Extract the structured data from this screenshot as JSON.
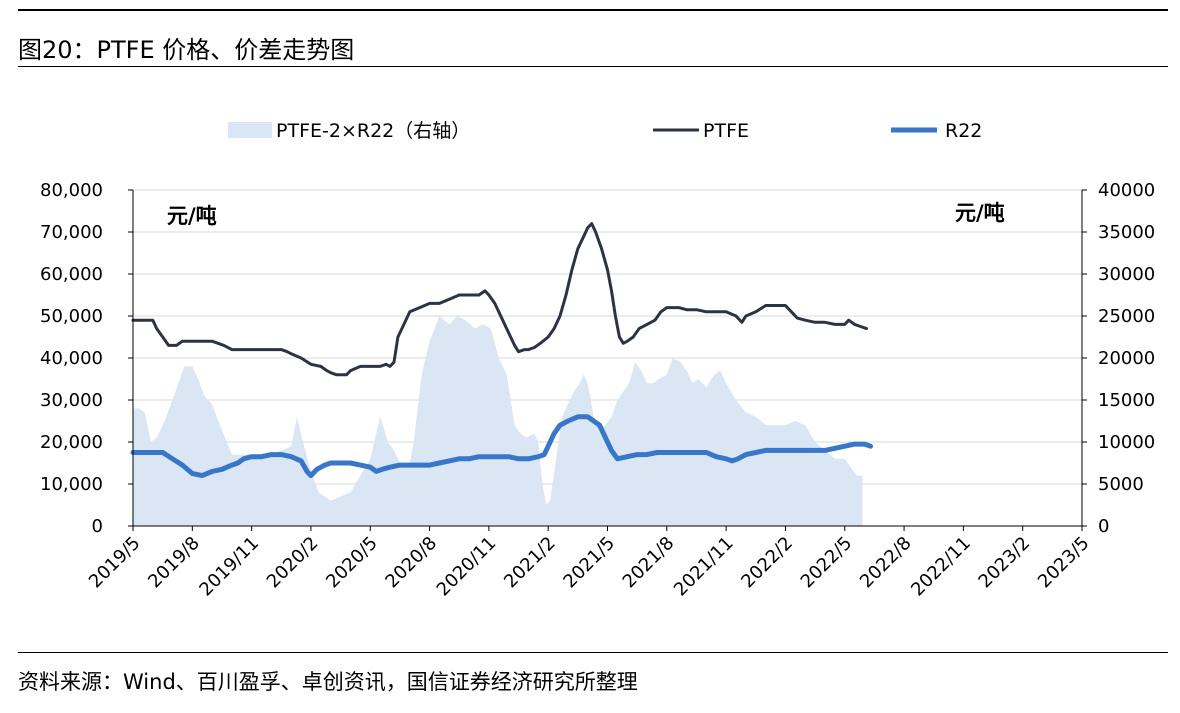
{
  "figure": {
    "title": "图20：PTFE 价格、价差走势图",
    "source": "资料来源：Wind、百川盈孚、卓创资讯，国信证券经济研究所整理"
  },
  "chart_data": {
    "type": "line",
    "left_unit": "元/吨",
    "right_unit": "元/吨",
    "x_tick_labels": [
      "2019/5",
      "2019/8",
      "2019/11",
      "2020/2",
      "2020/5",
      "2020/8",
      "2020/11",
      "2021/2",
      "2021/5",
      "2021/8",
      "2021/11",
      "2022/2",
      "2022/5",
      "2022/8",
      "2022/11",
      "2023/2",
      "2023/5"
    ],
    "left_axis": {
      "ylim": [
        0,
        80000
      ],
      "tick_labels": [
        "0",
        "10,000",
        "20,000",
        "30,000",
        "40,000",
        "50,000",
        "60,000",
        "70,000",
        "80,000"
      ]
    },
    "right_axis": {
      "ylim": [
        0,
        40000
      ],
      "tick_labels": [
        "0",
        "5000",
        "10000",
        "15000",
        "20000",
        "25000",
        "30000",
        "35000",
        "40000"
      ]
    },
    "grid": "horizontal",
    "legend_position": "top",
    "series": [
      {
        "name": "PTFE-2×R22（右轴）",
        "type": "area",
        "axis": "right",
        "color": "#dae6f4",
        "points": [
          [
            0,
            14000
          ],
          [
            0.3,
            14000
          ],
          [
            0.6,
            13500
          ],
          [
            0.9,
            10000
          ],
          [
            1.2,
            10500
          ],
          [
            1.6,
            12500
          ],
          [
            2.0,
            15000
          ],
          [
            2.3,
            17000
          ],
          [
            2.6,
            19000
          ],
          [
            3.0,
            19000
          ],
          [
            3.3,
            17500
          ],
          [
            3.6,
            15500
          ],
          [
            4.0,
            14500
          ],
          [
            4.4,
            12000
          ],
          [
            5.0,
            8500
          ],
          [
            6.0,
            8500
          ],
          [
            7.0,
            8500
          ],
          [
            7.5,
            9000
          ],
          [
            8.0,
            9500
          ],
          [
            8.3,
            13000
          ],
          [
            8.6,
            10000
          ],
          [
            9.0,
            6500
          ],
          [
            9.4,
            4000
          ],
          [
            9.7,
            3500
          ],
          [
            10.0,
            3000
          ],
          [
            10.5,
            3500
          ],
          [
            11.0,
            4000
          ],
          [
            11.5,
            6000
          ],
          [
            12.0,
            8000
          ],
          [
            12.5,
            13000
          ],
          [
            12.9,
            10000
          ],
          [
            13.2,
            9000
          ],
          [
            13.6,
            7000
          ],
          [
            14.0,
            7500
          ],
          [
            14.2,
            10000
          ],
          [
            14.6,
            18000
          ],
          [
            15.0,
            22000
          ],
          [
            15.5,
            25000
          ],
          [
            16.0,
            24000
          ],
          [
            16.4,
            25000
          ],
          [
            16.8,
            24500
          ],
          [
            17.3,
            23500
          ],
          [
            17.7,
            24000
          ],
          [
            18.1,
            23500
          ],
          [
            18.5,
            20000
          ],
          [
            18.9,
            18000
          ],
          [
            19.3,
            12000
          ],
          [
            19.6,
            11000
          ],
          [
            19.9,
            10500
          ],
          [
            20.3,
            11000
          ],
          [
            20.5,
            10000
          ],
          [
            20.7,
            5000
          ],
          [
            20.9,
            2500
          ],
          [
            21.1,
            3000
          ],
          [
            21.4,
            8000
          ],
          [
            21.7,
            13000
          ],
          [
            22.0,
            14500
          ],
          [
            22.3,
            16000
          ],
          [
            22.6,
            17000
          ],
          [
            22.8,
            18000
          ],
          [
            23.0,
            17000
          ],
          [
            23.3,
            13000
          ],
          [
            23.6,
            11500
          ],
          [
            23.9,
            12000
          ],
          [
            24.2,
            13000
          ],
          [
            24.5,
            15000
          ],
          [
            24.8,
            16000
          ],
          [
            25.1,
            17000
          ],
          [
            25.4,
            19500
          ],
          [
            25.7,
            18500
          ],
          [
            26.0,
            17000
          ],
          [
            26.3,
            17000
          ],
          [
            26.6,
            17500
          ],
          [
            27.0,
            18000
          ],
          [
            27.3,
            20000
          ],
          [
            27.7,
            19500
          ],
          [
            28.0,
            18500
          ],
          [
            28.3,
            17000
          ],
          [
            28.6,
            17500
          ],
          [
            29.0,
            16500
          ],
          [
            29.4,
            18000
          ],
          [
            29.7,
            18500
          ],
          [
            30.0,
            17000
          ],
          [
            30.5,
            15000
          ],
          [
            31.0,
            13500
          ],
          [
            31.5,
            13000
          ],
          [
            32.0,
            12000
          ],
          [
            32.5,
            12000
          ],
          [
            33.0,
            12000
          ],
          [
            33.5,
            12500
          ],
          [
            34.0,
            12000
          ],
          [
            34.5,
            10000
          ],
          [
            35.0,
            9000
          ],
          [
            35.5,
            8000
          ],
          [
            36.0,
            8000
          ],
          [
            36.3,
            7000
          ],
          [
            36.6,
            6000
          ],
          [
            36.9,
            6000
          ]
        ]
      },
      {
        "name": "PTFE",
        "type": "line",
        "axis": "left",
        "color": "#2c3344",
        "points": [
          [
            0,
            49000
          ],
          [
            1.0,
            49000
          ],
          [
            1.2,
            47000
          ],
          [
            1.5,
            45000
          ],
          [
            1.8,
            43000
          ],
          [
            2.2,
            43000
          ],
          [
            2.5,
            44000
          ],
          [
            3.0,
            44000
          ],
          [
            3.6,
            44000
          ],
          [
            4.0,
            44000
          ],
          [
            4.6,
            43000
          ],
          [
            5.0,
            42000
          ],
          [
            6.0,
            42000
          ],
          [
            7.0,
            42000
          ],
          [
            7.5,
            42000
          ],
          [
            7.8,
            41500
          ],
          [
            8.0,
            41000
          ],
          [
            8.5,
            40000
          ],
          [
            9.0,
            38500
          ],
          [
            9.5,
            38000
          ],
          [
            9.8,
            37000
          ],
          [
            10.0,
            36500
          ],
          [
            10.3,
            36000
          ],
          [
            10.8,
            36000
          ],
          [
            11.0,
            37000
          ],
          [
            11.5,
            38000
          ],
          [
            12.0,
            38000
          ],
          [
            12.5,
            38000
          ],
          [
            12.8,
            38500
          ],
          [
            13.0,
            38000
          ],
          [
            13.2,
            39000
          ],
          [
            13.4,
            45000
          ],
          [
            13.7,
            48000
          ],
          [
            14.0,
            51000
          ],
          [
            14.5,
            52000
          ],
          [
            15.0,
            53000
          ],
          [
            15.5,
            53000
          ],
          [
            16.0,
            54000
          ],
          [
            16.5,
            55000
          ],
          [
            17.0,
            55000
          ],
          [
            17.5,
            55000
          ],
          [
            17.8,
            56000
          ],
          [
            18.0,
            55000
          ],
          [
            18.3,
            53000
          ],
          [
            18.7,
            49000
          ],
          [
            19.0,
            46000
          ],
          [
            19.3,
            43000
          ],
          [
            19.5,
            41500
          ],
          [
            19.8,
            42000
          ],
          [
            20.0,
            42000
          ],
          [
            20.3,
            42500
          ],
          [
            20.6,
            43500
          ],
          [
            21.0,
            45000
          ],
          [
            21.3,
            47000
          ],
          [
            21.6,
            50000
          ],
          [
            21.9,
            55000
          ],
          [
            22.2,
            61000
          ],
          [
            22.5,
            66000
          ],
          [
            22.8,
            69000
          ],
          [
            23.0,
            71000
          ],
          [
            23.2,
            72000
          ],
          [
            23.4,
            70000
          ],
          [
            23.7,
            66000
          ],
          [
            24.0,
            61000
          ],
          [
            24.2,
            56000
          ],
          [
            24.4,
            50000
          ],
          [
            24.6,
            45000
          ],
          [
            24.8,
            43500
          ],
          [
            25.0,
            44000
          ],
          [
            25.3,
            45000
          ],
          [
            25.6,
            47000
          ],
          [
            26.0,
            48000
          ],
          [
            26.4,
            49000
          ],
          [
            26.7,
            51000
          ],
          [
            27.0,
            52000
          ],
          [
            27.3,
            52000
          ],
          [
            27.6,
            52000
          ],
          [
            28.0,
            51500
          ],
          [
            28.5,
            51500
          ],
          [
            29.0,
            51000
          ],
          [
            30.0,
            51000
          ],
          [
            30.5,
            50000
          ],
          [
            30.8,
            48500
          ],
          [
            31.0,
            50000
          ],
          [
            31.5,
            51000
          ],
          [
            32.0,
            52500
          ],
          [
            32.5,
            52500
          ],
          [
            33.0,
            52500
          ],
          [
            33.3,
            51000
          ],
          [
            33.6,
            49500
          ],
          [
            34.0,
            49000
          ],
          [
            34.5,
            48500
          ],
          [
            35.0,
            48500
          ],
          [
            35.5,
            48000
          ],
          [
            36.0,
            48000
          ],
          [
            36.2,
            49000
          ],
          [
            36.5,
            48000
          ],
          [
            36.8,
            47500
          ],
          [
            37.1,
            47000
          ]
        ]
      },
      {
        "name": "R22",
        "type": "line",
        "axis": "left",
        "color": "#3877c8",
        "points": [
          [
            0,
            17500
          ],
          [
            1.5,
            17500
          ],
          [
            2.0,
            16000
          ],
          [
            2.5,
            14500
          ],
          [
            3.0,
            12500
          ],
          [
            3.5,
            12000
          ],
          [
            4.0,
            13000
          ],
          [
            4.5,
            13500
          ],
          [
            5.0,
            14500
          ],
          [
            5.3,
            15000
          ],
          [
            5.6,
            16000
          ],
          [
            6.0,
            16500
          ],
          [
            6.5,
            16500
          ],
          [
            7.0,
            17000
          ],
          [
            7.5,
            17000
          ],
          [
            8.0,
            16500
          ],
          [
            8.5,
            15500
          ],
          [
            8.8,
            13000
          ],
          [
            9.0,
            12000
          ],
          [
            9.3,
            13500
          ],
          [
            9.7,
            14500
          ],
          [
            10.0,
            15000
          ],
          [
            10.5,
            15000
          ],
          [
            11.0,
            15000
          ],
          [
            11.5,
            14500
          ],
          [
            12.0,
            14000
          ],
          [
            12.3,
            13000
          ],
          [
            12.6,
            13500
          ],
          [
            13.0,
            14000
          ],
          [
            13.5,
            14500
          ],
          [
            14.0,
            14500
          ],
          [
            14.5,
            14500
          ],
          [
            15.0,
            14500
          ],
          [
            15.5,
            15000
          ],
          [
            16.0,
            15500
          ],
          [
            16.5,
            16000
          ],
          [
            17.0,
            16000
          ],
          [
            17.5,
            16500
          ],
          [
            18.0,
            16500
          ],
          [
            18.5,
            16500
          ],
          [
            19.0,
            16500
          ],
          [
            19.5,
            16000
          ],
          [
            20.0,
            16000
          ],
          [
            20.5,
            16500
          ],
          [
            20.8,
            17000
          ],
          [
            21.0,
            19000
          ],
          [
            21.3,
            22000
          ],
          [
            21.6,
            24000
          ],
          [
            22.0,
            25000
          ],
          [
            22.5,
            26000
          ],
          [
            23.0,
            26000
          ],
          [
            23.3,
            25000
          ],
          [
            23.6,
            24000
          ],
          [
            23.9,
            21000
          ],
          [
            24.2,
            18000
          ],
          [
            24.5,
            16000
          ],
          [
            25.0,
            16500
          ],
          [
            25.5,
            17000
          ],
          [
            26.0,
            17000
          ],
          [
            26.5,
            17500
          ],
          [
            27.0,
            17500
          ],
          [
            27.5,
            17500
          ],
          [
            28.0,
            17500
          ],
          [
            28.5,
            17500
          ],
          [
            29.0,
            17500
          ],
          [
            29.5,
            16500
          ],
          [
            30.0,
            16000
          ],
          [
            30.3,
            15500
          ],
          [
            30.6,
            16000
          ],
          [
            31.0,
            17000
          ],
          [
            31.5,
            17500
          ],
          [
            32.0,
            18000
          ],
          [
            33.0,
            18000
          ],
          [
            34.0,
            18000
          ],
          [
            35.0,
            18000
          ],
          [
            35.5,
            18500
          ],
          [
            36.0,
            19000
          ],
          [
            36.5,
            19500
          ],
          [
            37.0,
            19500
          ],
          [
            37.3,
            19000
          ]
        ]
      }
    ]
  }
}
